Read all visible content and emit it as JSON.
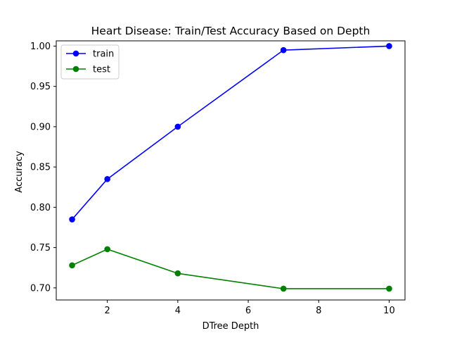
{
  "chart_data": {
    "type": "line",
    "title": "Heart Disease: Train/Test Accuracy Based on Depth",
    "xlabel": "DTree Depth",
    "ylabel": "Accuracy",
    "xlim": [
      0.55,
      10.45
    ],
    "ylim": [
      0.685,
      1.0065
    ],
    "xticks": [
      2,
      4,
      6,
      8,
      10
    ],
    "xtick_labels": [
      "2",
      "4",
      "6",
      "8",
      "10"
    ],
    "yticks": [
      0.7,
      0.75,
      0.8,
      0.85,
      0.9,
      0.95,
      1.0
    ],
    "ytick_labels": [
      "0.70",
      "0.75",
      "0.80",
      "0.85",
      "0.90",
      "0.95",
      "1.00"
    ],
    "grid": false,
    "legend_position": "top-left",
    "x": [
      1,
      2,
      4,
      7,
      10
    ],
    "series": [
      {
        "name": "train",
        "color": "#0000ff",
        "marker": "circle",
        "values": [
          0.785,
          0.835,
          0.9,
          0.995,
          1.0
        ]
      },
      {
        "name": "test",
        "color": "#008000",
        "marker": "circle",
        "values": [
          0.728,
          0.748,
          0.718,
          0.699,
          0.699
        ]
      }
    ]
  }
}
